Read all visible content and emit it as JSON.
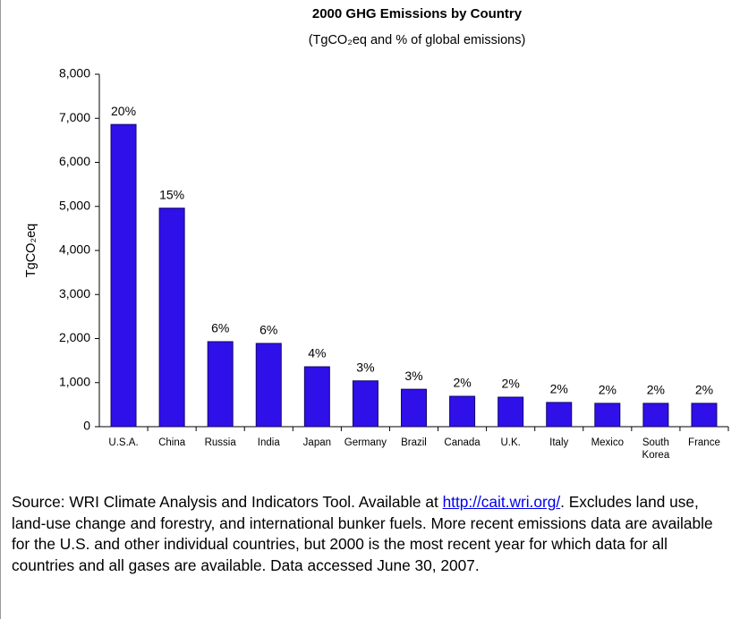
{
  "chart_data": {
    "type": "bar",
    "title": "2000 GHG Emissions by Country",
    "subtitle": "(TgCO₂eq and % of global emissions)",
    "y_label": "TgCO₂eq",
    "categories": [
      "U.S.A.",
      "China",
      "Russia",
      "India",
      "Japan",
      "Germany",
      "Brazil",
      "Canada",
      "U.K.",
      "Italy",
      "Mexico",
      "South Korea",
      "France"
    ],
    "values": [
      6860,
      4960,
      1930,
      1890,
      1360,
      1040,
      850,
      690,
      670,
      550,
      530,
      530,
      530
    ],
    "share_labels": [
      "20%",
      "15%",
      "6%",
      "6%",
      "4%",
      "3%",
      "3%",
      "2%",
      "2%",
      "2%",
      "2%",
      "2%",
      "2%"
    ],
    "color": "#2f10e8",
    "ylim": [
      0,
      8000
    ],
    "yticks": [
      0,
      {
        "value": 1000,
        "label": "1,000"
      },
      {
        "value": 2000,
        "label": "2,000"
      },
      {
        "value": 3000,
        "label": "3,000"
      },
      {
        "value": 4000,
        "label": "4,000"
      },
      {
        "value": 5000,
        "label": "5,000"
      },
      {
        "value": 6000,
        "label": "6,000"
      },
      {
        "value": 7000,
        "label": "7,000"
      },
      {
        "value": 8000,
        "label": "8,000"
      }
    ],
    "grid": false
  },
  "source": {
    "before": "Source: WRI Climate Analysis and Indicators Tool.  Available at ",
    "link": "http://cait.wri.org/",
    "after": ". Excludes land use, land-use change and forestry, and international bunker fuels. More recent emissions data are available for the U.S. and other individual countries, but 2000 is the most recent year for which data for all countries and all gases are available.   Data accessed June 30, 2007."
  }
}
